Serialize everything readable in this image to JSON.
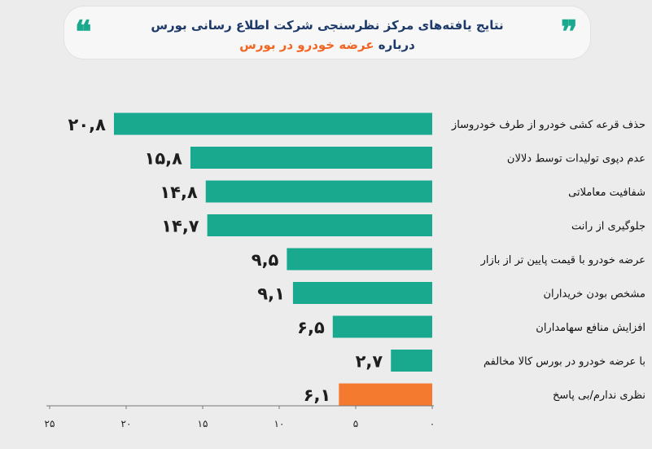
{
  "header": {
    "title_line1": "نتایج یافته‌های مرکز نظرسنجی شرکت اطلاع رسانی بورس",
    "title_line2_prefix": "درباره",
    "title_line2_highlight": "عرضه خودرو در بورس",
    "quote_left": "❝",
    "quote_right": "❞"
  },
  "colors": {
    "teal": "#18a98f",
    "orange": "#f47a2f",
    "highlight_text": "#f26522",
    "title_text": "#1d3a6b"
  },
  "chart_data": {
    "type": "bar",
    "orientation": "horizontal",
    "categories": [
      "حذف قرعه کشی خودرو از طرف خودروساز",
      "عدم دپوی تولیدات توسط دلالان",
      "شفافیت معاملاتی",
      "جلوگیری از رانت",
      "عرضه خودرو با قیمت پایین تر از بازار",
      "مشخص بودن خریداران",
      "افزایش منافع سهامداران",
      "با عرضه خودرو در بورس کالا مخالفم",
      "نظری ندارم/بی پاسخ"
    ],
    "values": [
      20.8,
      15.8,
      14.8,
      14.7,
      9.5,
      9.1,
      6.5,
      2.7,
      6.1
    ],
    "value_labels": [
      "۲۰,۸",
      "۱۵,۸",
      "۱۴,۸",
      "۱۴,۷",
      "۹,۵",
      "۹,۱",
      "۶,۵",
      "۲,۷",
      "۶,۱"
    ],
    "bar_colors": [
      "#18a98f",
      "#18a98f",
      "#18a98f",
      "#18a98f",
      "#18a98f",
      "#18a98f",
      "#18a98f",
      "#18a98f",
      "#f47a2f"
    ],
    "x_ticks": [
      0,
      5,
      10,
      15,
      20,
      25
    ],
    "x_tick_labels": [
      "۰",
      "۵",
      "۱۰",
      "۱۵",
      "۲۰",
      "۲۵"
    ],
    "xlim": [
      0,
      25
    ],
    "x_direction": "right-to-left",
    "grid": false,
    "legend": "none"
  }
}
